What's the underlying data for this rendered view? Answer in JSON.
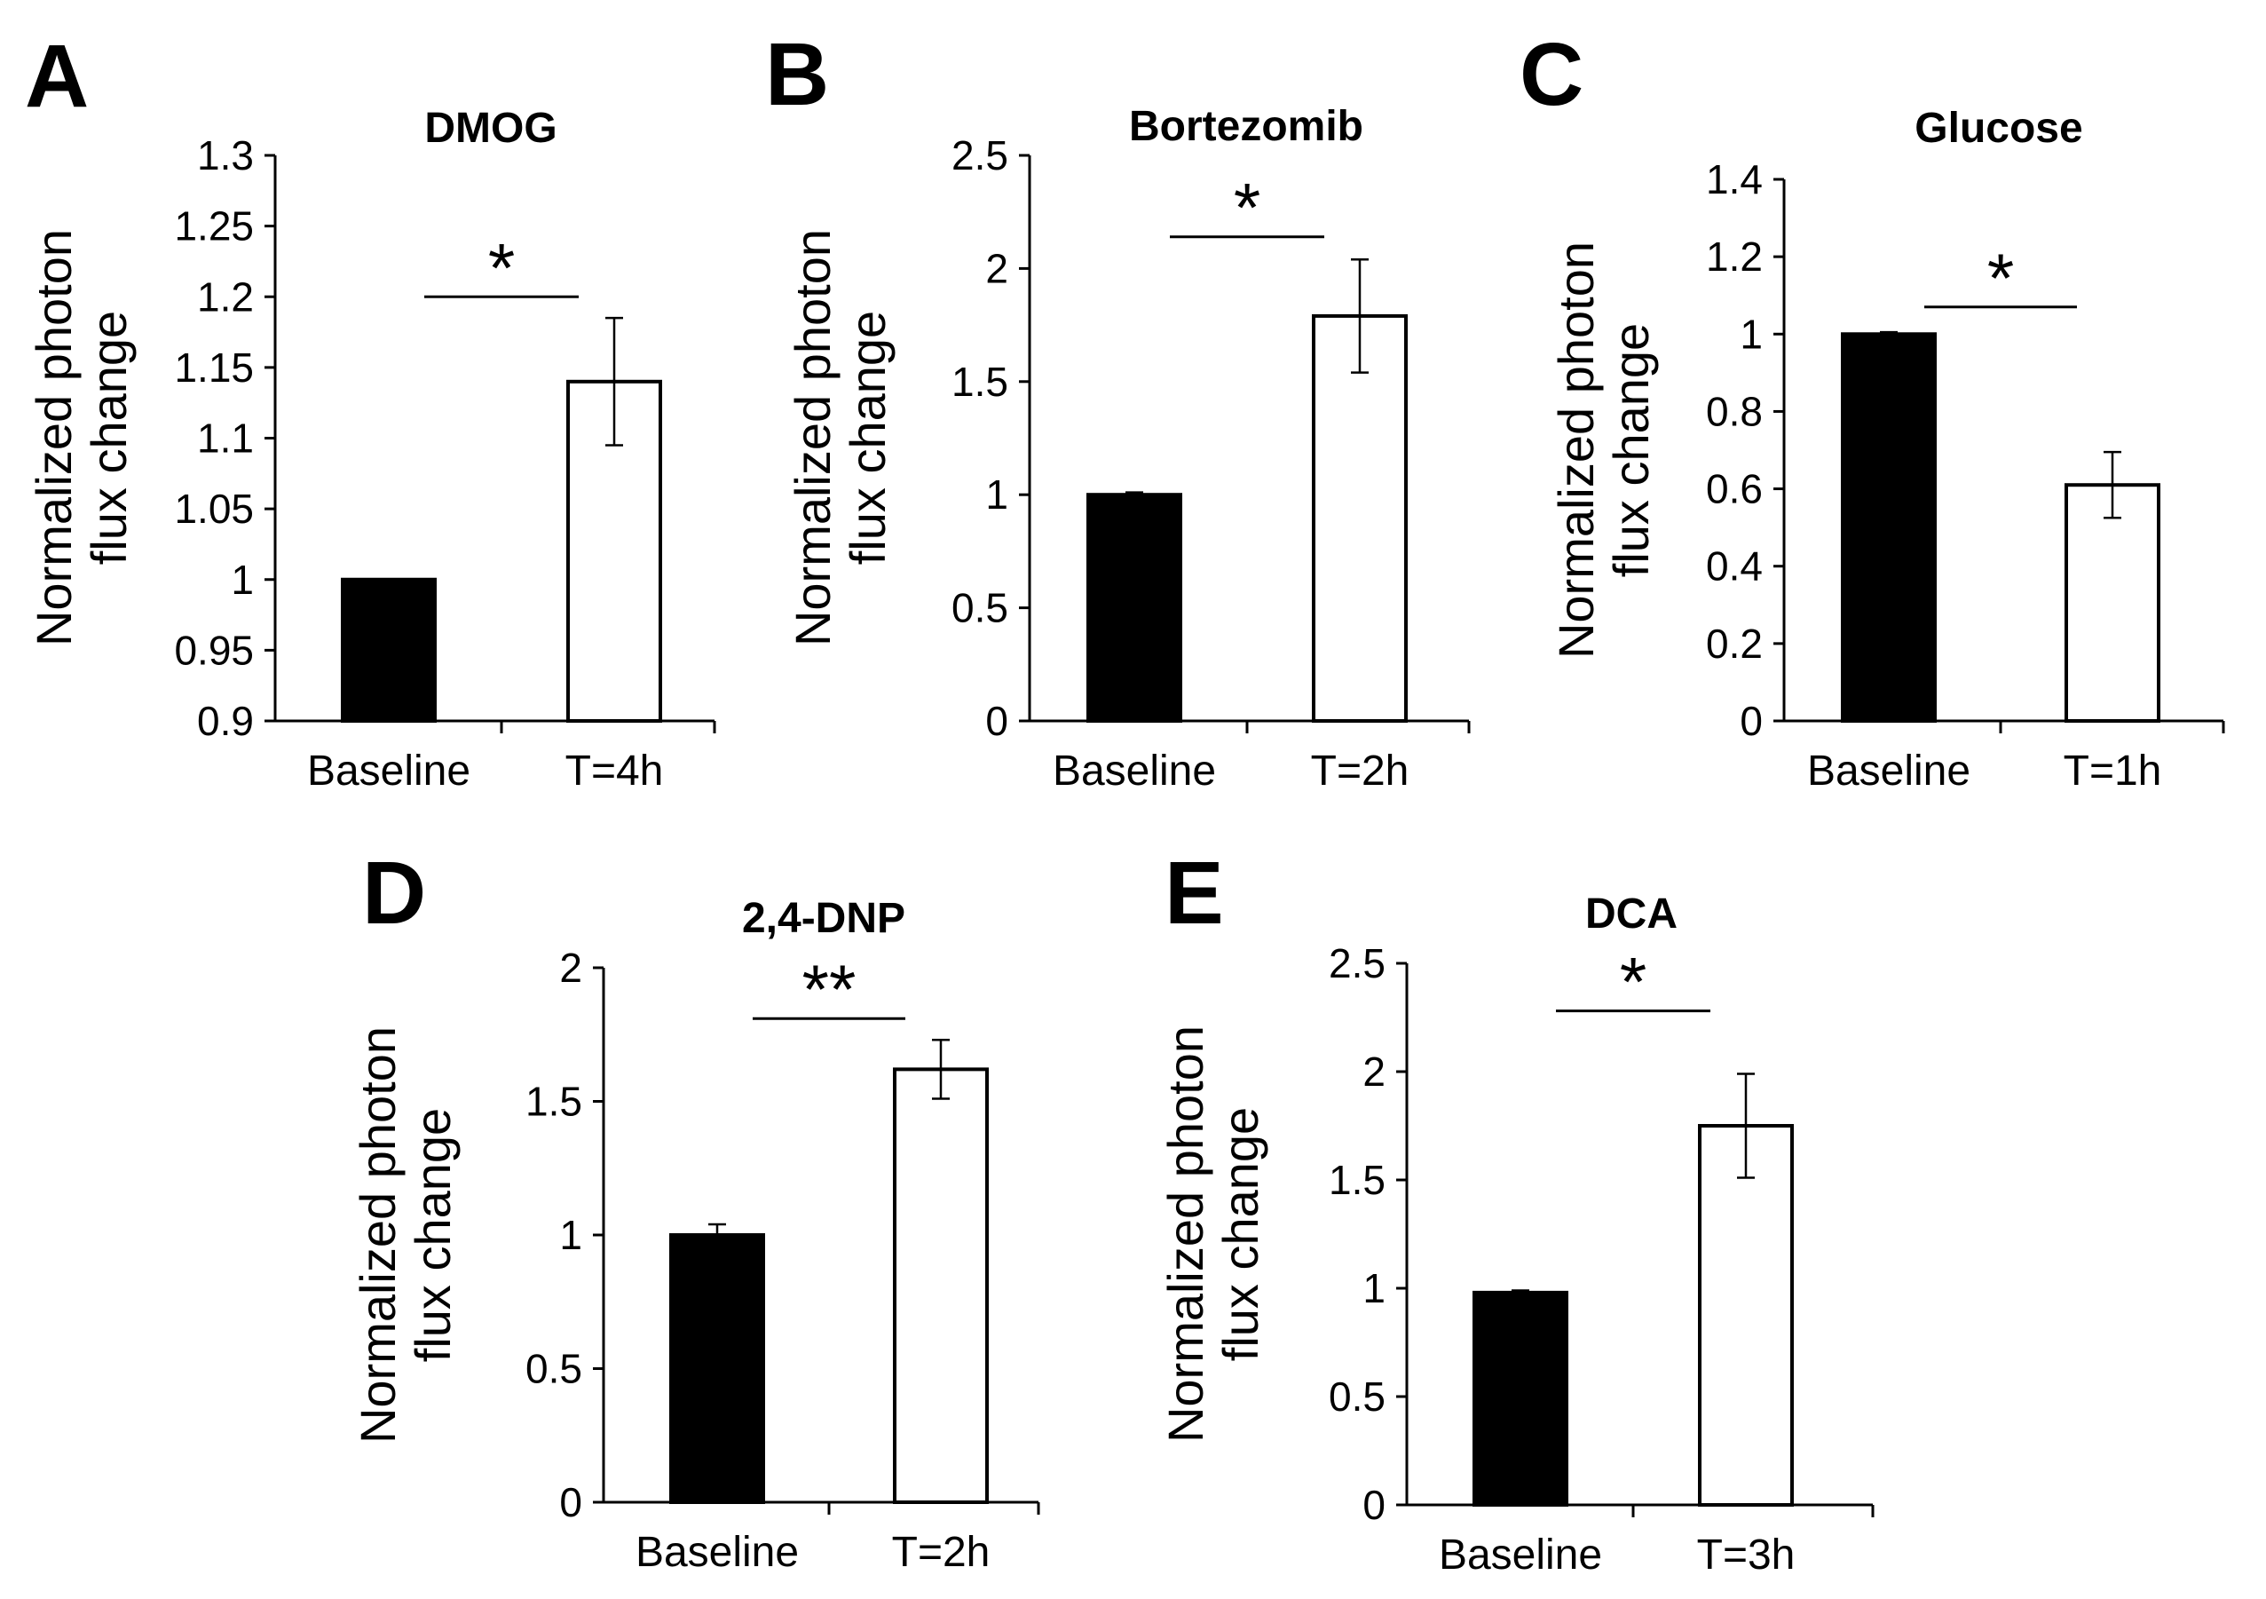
{
  "figure": {
    "panel_letters": [
      "A",
      "B",
      "C",
      "D",
      "E"
    ]
  },
  "chart_data": [
    {
      "panel": "A",
      "type": "bar",
      "title": "DMOG",
      "ylabel": "Normalized photon flux change",
      "ylabel_lines": [
        "Normalized photon",
        "flux change"
      ],
      "categories": [
        "Baseline",
        "T=4h"
      ],
      "values": [
        1.0,
        1.14
      ],
      "errors": [
        0.0,
        0.045
      ],
      "bar_colors": [
        "#000000",
        "#ffffff"
      ],
      "ylim": [
        0.9,
        1.3
      ],
      "yticks": [
        0.9,
        0.95,
        1,
        1.05,
        1.1,
        1.15,
        1.2,
        1.25,
        1.3
      ],
      "ytick_labels": [
        "0.9",
        "0.95",
        "1",
        "1.05",
        "1.1",
        "1.15",
        "1.2",
        "1.25",
        "1.3"
      ],
      "significance": "*",
      "sig_value": 1.2,
      "grid": false
    },
    {
      "panel": "B",
      "type": "bar",
      "title": "Bortezomib",
      "ylabel": "Normalized photon flux change",
      "ylabel_lines": [
        "Normalized photon",
        "flux change"
      ],
      "categories": [
        "Baseline",
        "T=2h"
      ],
      "values": [
        1.0,
        1.79
      ],
      "errors": [
        0.01,
        0.25
      ],
      "bar_colors": [
        "#000000",
        "#ffffff"
      ],
      "ylim": [
        0,
        2.5
      ],
      "yticks": [
        0,
        0.5,
        1,
        1.5,
        2,
        2.5
      ],
      "ytick_labels": [
        "0",
        "0.5",
        "1",
        "1.5",
        "2",
        "2.5"
      ],
      "significance": "*",
      "sig_value": 2.14,
      "grid": false
    },
    {
      "panel": "C",
      "type": "bar",
      "title": "Glucose",
      "ylabel": "Normalized photon flux change",
      "ylabel_lines": [
        "Normalized photon",
        "flux change"
      ],
      "categories": [
        "Baseline",
        "T=1h"
      ],
      "values": [
        1.0,
        0.61
      ],
      "errors": [
        0.005,
        0.085
      ],
      "bar_colors": [
        "#000000",
        "#ffffff"
      ],
      "ylim": [
        0,
        1.4
      ],
      "yticks": [
        0,
        0.2,
        0.4,
        0.6,
        0.8,
        1,
        1.2,
        1.4
      ],
      "ytick_labels": [
        "0",
        "0.2",
        "0.4",
        "0.6",
        "0.8",
        "1",
        "1.2",
        "1.4"
      ],
      "significance": "*",
      "sig_value": 1.07,
      "grid": false
    },
    {
      "panel": "D",
      "type": "bar",
      "title": "2,4-DNP",
      "ylabel": "Normalized photon flux change",
      "ylabel_lines": [
        "Normalized photon",
        "flux change"
      ],
      "categories": [
        "Baseline",
        "T=2h"
      ],
      "values": [
        1.0,
        1.62
      ],
      "errors": [
        0.04,
        0.11
      ],
      "bar_colors": [
        "#000000",
        "#ffffff"
      ],
      "ylim": [
        0,
        2
      ],
      "yticks": [
        0,
        0.5,
        1,
        1.5,
        2
      ],
      "ytick_labels": [
        "0",
        "0.5",
        "1",
        "1.5",
        "2"
      ],
      "significance": "**",
      "sig_value": 1.81,
      "grid": false
    },
    {
      "panel": "E",
      "type": "bar",
      "title": "DCA",
      "ylabel": "Normalized photon flux change",
      "ylabel_lines": [
        "Normalized photon",
        "flux change"
      ],
      "categories": [
        "Baseline",
        "T=3h"
      ],
      "values": [
        0.98,
        1.75
      ],
      "errors": [
        0.01,
        0.24
      ],
      "bar_colors": [
        "#000000",
        "#ffffff"
      ],
      "ylim": [
        0,
        2.5
      ],
      "yticks": [
        0,
        0.5,
        1,
        1.5,
        2,
        2.5
      ],
      "ytick_labels": [
        "0",
        "0.5",
        "1",
        "1.5",
        "2",
        "2.5"
      ],
      "significance": "*",
      "sig_value": 2.28,
      "grid": false
    }
  ]
}
